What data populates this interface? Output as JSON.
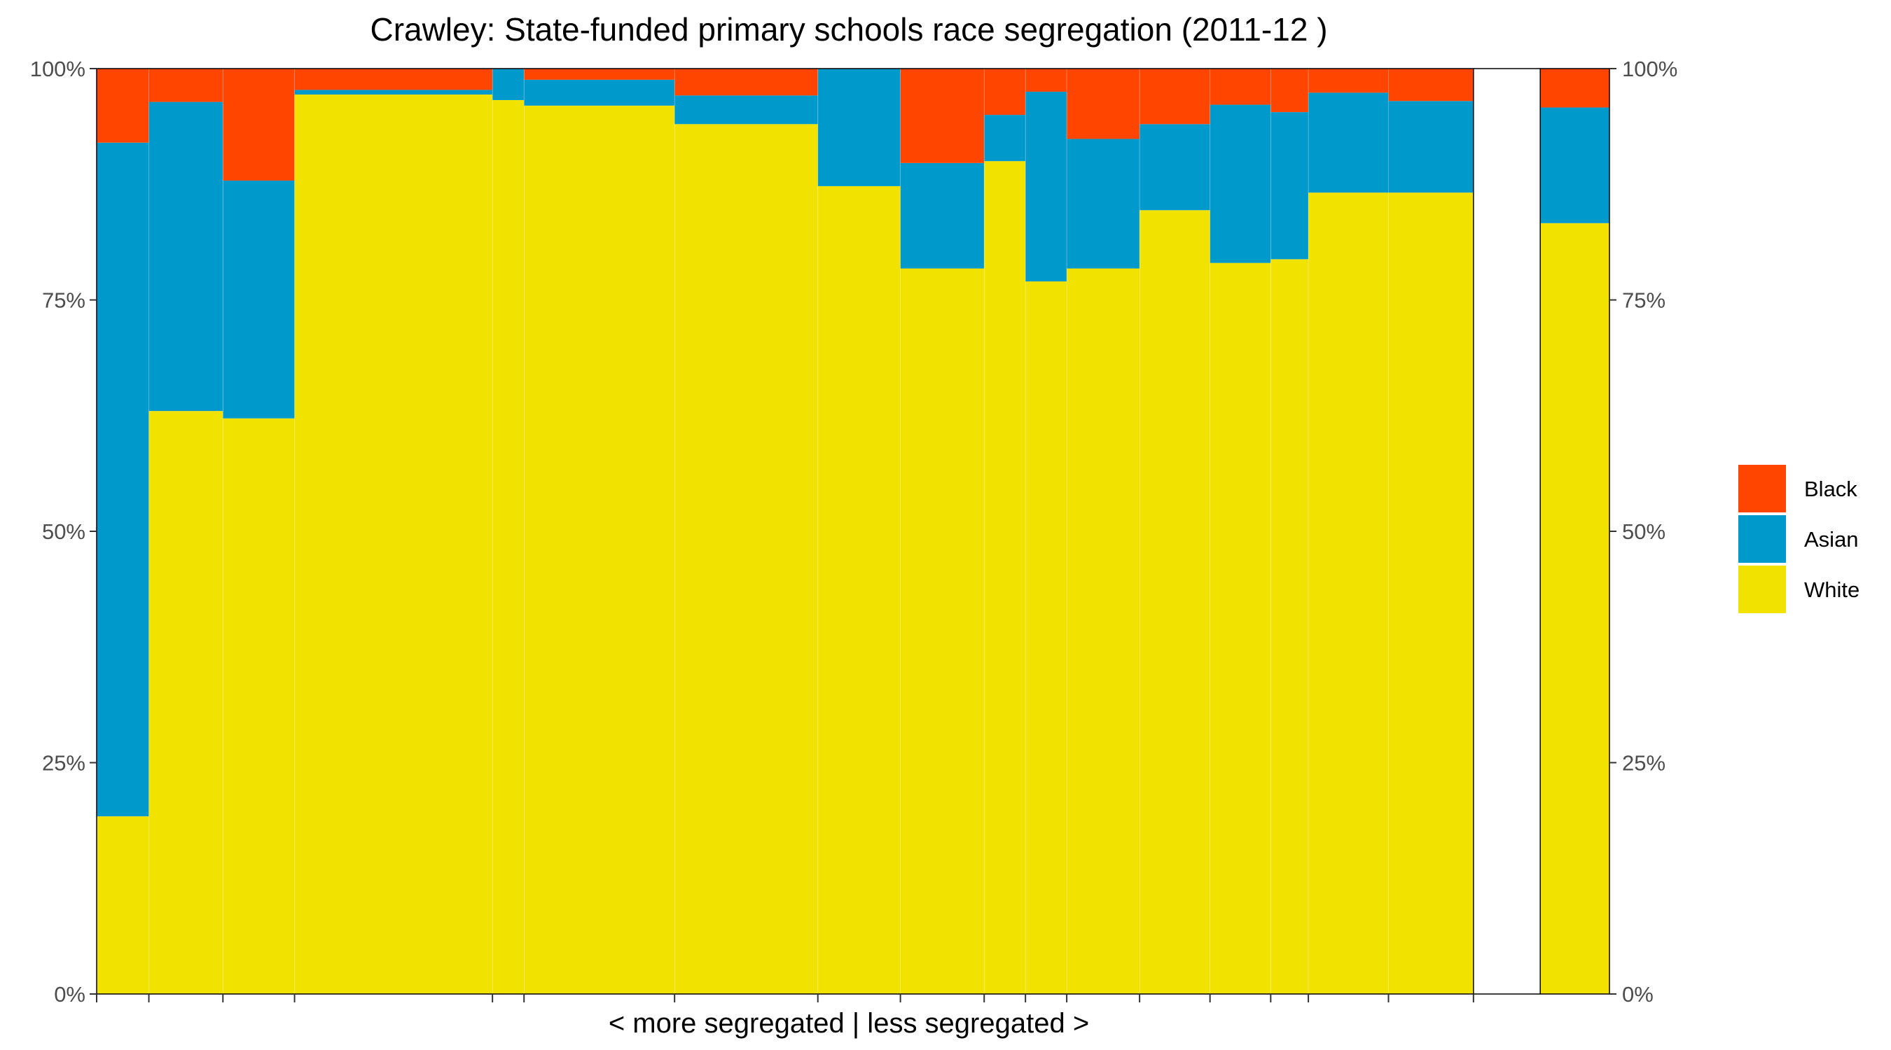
{
  "chart_data": {
    "type": "bar",
    "title": "Crawley: State-funded primary schools race segregation (2011-12 )",
    "xlabel": "< more segregated | less segregated >",
    "ylabel": "",
    "ylim": [
      0,
      100
    ],
    "y_ticks": [
      "0%",
      "25%",
      "50%",
      "75%",
      "100%"
    ],
    "y_tick_values": [
      0,
      25,
      50,
      75,
      100
    ],
    "variable_width": true,
    "legend_position": "right",
    "grid": false,
    "colors": {
      "Black": "#FF4500",
      "Asian": "#0099CC",
      "White": "#F2E200",
      "separator": "#ffffff"
    },
    "series_order": [
      "White",
      "Asian",
      "Black"
    ],
    "legend": [
      {
        "name": "Black",
        "color": "#FF4500"
      },
      {
        "name": "Asian",
        "color": "#0099CC"
      },
      {
        "name": "White",
        "color": "#F2E200"
      }
    ],
    "schools": [
      {
        "relative_size": 43,
        "White": 19.2,
        "Asian": 72.8,
        "Black": 8.0
      },
      {
        "relative_size": 61,
        "White": 63.0,
        "Asian": 33.4,
        "Black": 3.6
      },
      {
        "relative_size": 59,
        "White": 62.2,
        "Asian": 25.7,
        "Black": 12.1
      },
      {
        "relative_size": 163,
        "White": 97.2,
        "Asian": 0.5,
        "Black": 2.3
      },
      {
        "relative_size": 26,
        "White": 96.6,
        "Asian": 3.4,
        "Black": 0.0
      },
      {
        "relative_size": 124,
        "White": 96.0,
        "Asian": 2.8,
        "Black": 1.2
      },
      {
        "relative_size": 118,
        "White": 94.0,
        "Asian": 3.1,
        "Black": 2.9
      },
      {
        "relative_size": 68,
        "White": 87.3,
        "Asian": 12.7,
        "Black": 0.0
      },
      {
        "relative_size": 69,
        "White": 78.4,
        "Asian": 11.4,
        "Black": 10.2
      },
      {
        "relative_size": 34,
        "White": 90.0,
        "Asian": 5.0,
        "Black": 5.0
      },
      {
        "relative_size": 34,
        "White": 77.0,
        "Asian": 20.5,
        "Black": 2.5
      },
      {
        "relative_size": 60,
        "White": 78.4,
        "Asian": 14.0,
        "Black": 7.6
      },
      {
        "relative_size": 58,
        "White": 84.7,
        "Asian": 9.3,
        "Black": 6.0
      },
      {
        "relative_size": 50,
        "White": 79.0,
        "Asian": 17.1,
        "Black": 3.9
      },
      {
        "relative_size": 31,
        "White": 79.4,
        "Asian": 15.9,
        "Black": 4.7
      },
      {
        "relative_size": 66,
        "White": 86.6,
        "Asian": 10.8,
        "Black": 2.6
      },
      {
        "relative_size": 70,
        "White": 86.6,
        "Asian": 9.9,
        "Black": 3.5
      }
    ],
    "gap_relative_size": 55,
    "overall": {
      "relative_size": 57,
      "White": 83.3,
      "Asian": 12.5,
      "Black": 4.2
    }
  }
}
